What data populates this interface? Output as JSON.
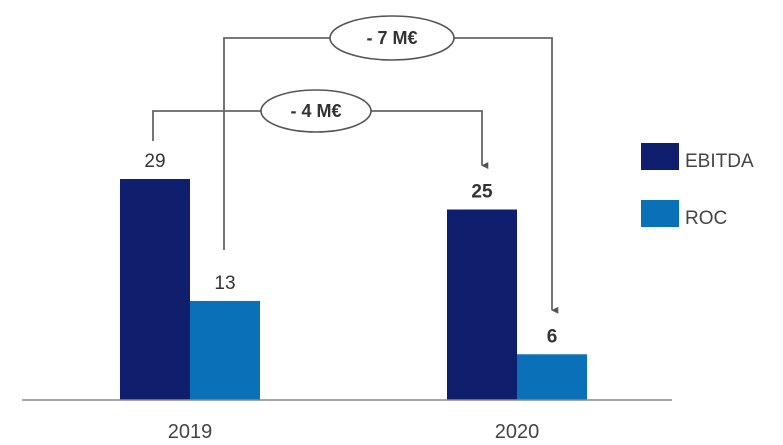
{
  "chart_data": {
    "type": "bar",
    "categories": [
      "2019",
      "2020"
    ],
    "series": [
      {
        "name": "EBITDA",
        "values": [
          29,
          25
        ],
        "color": "#0f1f6e"
      },
      {
        "name": "ROC",
        "values": [
          13,
          6
        ],
        "color": "#0a70b8"
      }
    ],
    "data_labels": [
      [
        "29",
        "13"
      ],
      [
        "25",
        "6"
      ]
    ],
    "data_labels_bold": [
      false,
      true
    ],
    "ylim": [
      0,
      35
    ],
    "grid": false,
    "legend_position": "right",
    "annotations": [
      {
        "text": "- 4 M€",
        "from_series": "EBITDA",
        "from_category": "2019",
        "to_series": "EBITDA",
        "to_category": "2020"
      },
      {
        "text": "- 7 M€",
        "from_series": "ROC",
        "from_category": "2019",
        "to_series": "ROC",
        "to_category": "2020"
      }
    ]
  }
}
